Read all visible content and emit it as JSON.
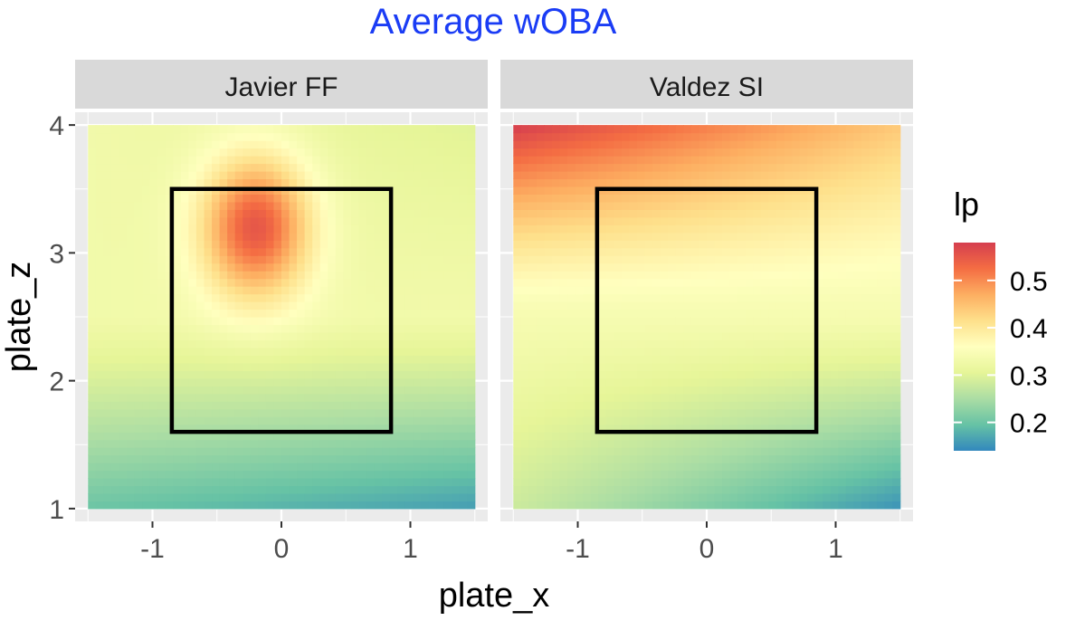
{
  "chart_data": {
    "type": "heatmap",
    "title": "Average wOBA",
    "title_color": "#1a3cf5",
    "xlabel": "plate_x",
    "ylabel": "plate_z",
    "xlim": [
      -1.6,
      1.6
    ],
    "ylim": [
      0.9,
      4.1
    ],
    "x_ticks": [
      -1,
      0,
      1
    ],
    "y_ticks": [
      1,
      2,
      3,
      4
    ],
    "x_tick_labels": [
      "-1",
      "0",
      "1"
    ],
    "y_tick_labels": [
      "1",
      "2",
      "3",
      "4"
    ],
    "grid": true,
    "legend": {
      "title": "lp",
      "placement": "right",
      "range": [
        0.14,
        0.58
      ],
      "ticks": [
        0.2,
        0.3,
        0.4,
        0.5
      ],
      "tick_labels": [
        "0.2",
        "0.3",
        "0.4",
        "0.5"
      ],
      "palette": [
        "#3288bd",
        "#66c2a5",
        "#abdda4",
        "#e6f598",
        "#ffffbf",
        "#fee08b",
        "#fdae61",
        "#f46d43",
        "#d53e4f"
      ]
    },
    "strike_zone": {
      "x": [
        -0.85,
        0.85
      ],
      "z": [
        1.6,
        3.5
      ]
    },
    "tile_extent": {
      "x": [
        -1.5,
        1.5
      ],
      "z": [
        1.0,
        4.0
      ]
    },
    "panels": [
      {
        "label": "Javier FF",
        "hot_spot": {
          "x": -0.2,
          "z": 3.2,
          "peak": 0.55
        },
        "corner_values": {
          "top_left": 0.33,
          "top_right": 0.3,
          "middle": 0.33,
          "bottom_left": 0.2,
          "bottom_right": 0.16
        }
      },
      {
        "label": "Valdez SI",
        "corner_values": {
          "top_left": 0.58,
          "top_right": 0.44,
          "middle": 0.34,
          "bottom_left": 0.28,
          "bottom_right": 0.15
        }
      }
    ]
  }
}
